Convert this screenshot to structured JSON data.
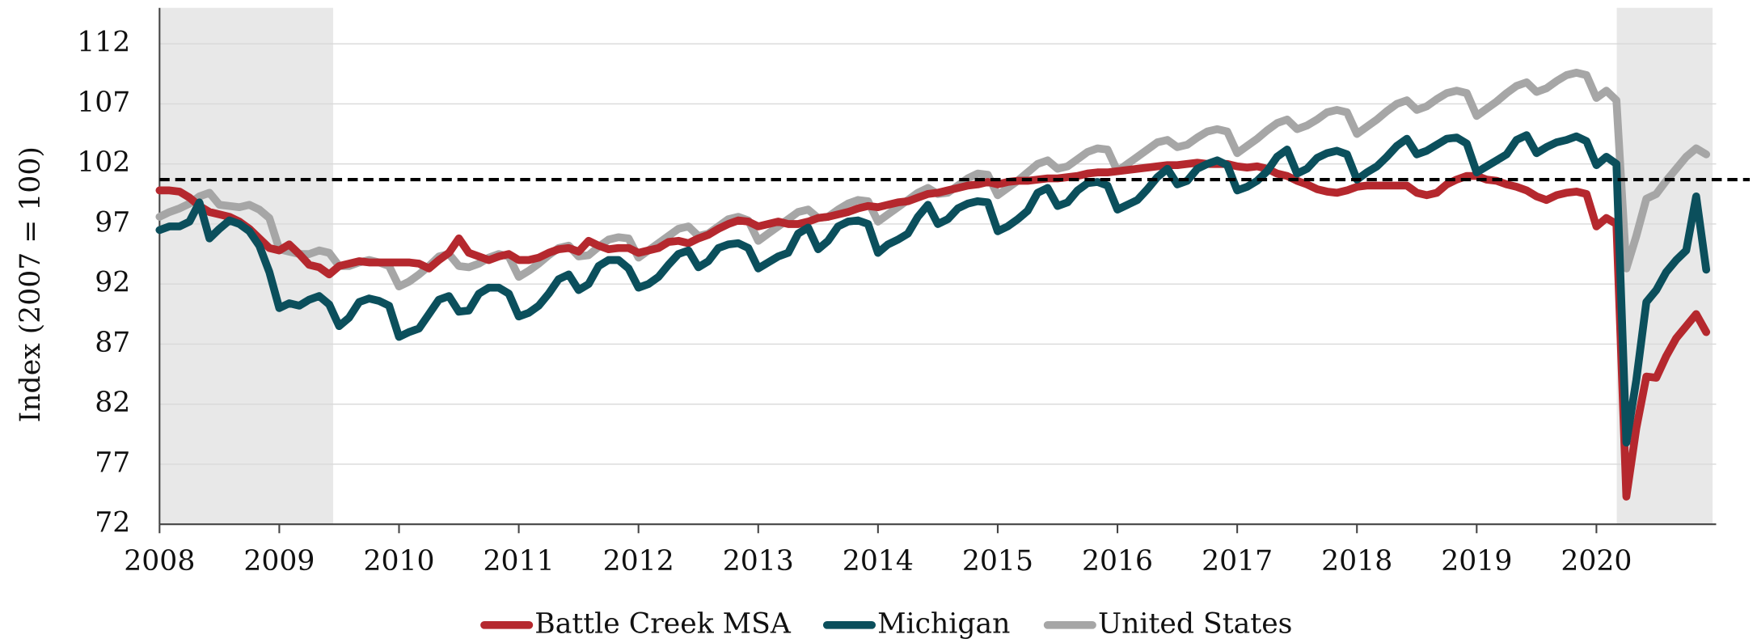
{
  "chart_data": {
    "type": "line",
    "y_label": "Index (2007 = 100)",
    "x": [
      2008.0,
      2008.083,
      2008.167,
      2008.25,
      2008.333,
      2008.417,
      2008.5,
      2008.583,
      2008.667,
      2008.75,
      2008.833,
      2008.917,
      2009.0,
      2009.083,
      2009.167,
      2009.25,
      2009.333,
      2009.417,
      2009.5,
      2009.583,
      2009.667,
      2009.75,
      2009.833,
      2009.917,
      2010.0,
      2010.083,
      2010.167,
      2010.25,
      2010.333,
      2010.417,
      2010.5,
      2010.583,
      2010.667,
      2010.75,
      2010.833,
      2010.917,
      2011.0,
      2011.083,
      2011.167,
      2011.25,
      2011.333,
      2011.417,
      2011.5,
      2011.583,
      2011.667,
      2011.75,
      2011.833,
      2011.917,
      2012.0,
      2012.083,
      2012.167,
      2012.25,
      2012.333,
      2012.417,
      2012.5,
      2012.583,
      2012.667,
      2012.75,
      2012.833,
      2012.917,
      2013.0,
      2013.083,
      2013.167,
      2013.25,
      2013.333,
      2013.417,
      2013.5,
      2013.583,
      2013.667,
      2013.75,
      2013.833,
      2013.917,
      2014.0,
      2014.083,
      2014.167,
      2014.25,
      2014.333,
      2014.417,
      2014.5,
      2014.583,
      2014.667,
      2014.75,
      2014.833,
      2014.917,
      2015.0,
      2015.083,
      2015.167,
      2015.25,
      2015.333,
      2015.417,
      2015.5,
      2015.583,
      2015.667,
      2015.75,
      2015.833,
      2015.917,
      2016.0,
      2016.083,
      2016.167,
      2016.25,
      2016.333,
      2016.417,
      2016.5,
      2016.583,
      2016.667,
      2016.75,
      2016.833,
      2016.917,
      2017.0,
      2017.083,
      2017.167,
      2017.25,
      2017.333,
      2017.417,
      2017.5,
      2017.583,
      2017.667,
      2017.75,
      2017.833,
      2017.917,
      2018.0,
      2018.083,
      2018.167,
      2018.25,
      2018.333,
      2018.417,
      2018.5,
      2018.583,
      2018.667,
      2018.75,
      2018.833,
      2018.917,
      2019.0,
      2019.083,
      2019.167,
      2019.25,
      2019.333,
      2019.417,
      2019.5,
      2019.583,
      2019.667,
      2019.75,
      2019.833,
      2019.917,
      2020.0,
      2020.083,
      2020.167,
      2020.25,
      2020.333,
      2020.417,
      2020.5,
      2020.583,
      2020.667,
      2020.75,
      2020.833,
      2020.917
    ],
    "series": [
      {
        "name": "Battle Creek MSA",
        "color": "#b5282e",
        "values": [
          99.8,
          99.8,
          99.7,
          99.2,
          98.5,
          98.0,
          97.8,
          97.6,
          97.2,
          96.6,
          95.8,
          95.0,
          94.8,
          95.3,
          94.5,
          93.6,
          93.4,
          92.8,
          93.5,
          93.7,
          93.9,
          93.8,
          93.8,
          93.8,
          93.8,
          93.8,
          93.7,
          93.3,
          94.0,
          94.6,
          95.8,
          94.6,
          94.3,
          94.0,
          94.3,
          94.5,
          94.0,
          94.0,
          94.2,
          94.6,
          94.9,
          95.0,
          94.7,
          95.6,
          95.2,
          94.9,
          95.0,
          95.0,
          94.6,
          94.8,
          95.0,
          95.5,
          95.6,
          95.4,
          95.8,
          96.1,
          96.6,
          97.0,
          97.3,
          97.2,
          96.8,
          97.0,
          97.2,
          97.0,
          97.0,
          97.2,
          97.5,
          97.6,
          97.8,
          98.0,
          98.3,
          98.5,
          98.4,
          98.6,
          98.8,
          98.9,
          99.2,
          99.5,
          99.6,
          99.8,
          100.0,
          100.2,
          100.3,
          100.5,
          100.3,
          100.5,
          100.6,
          100.6,
          100.7,
          100.8,
          100.8,
          100.9,
          101.0,
          101.2,
          101.3,
          101.3,
          101.4,
          101.5,
          101.6,
          101.7,
          101.8,
          101.9,
          101.9,
          102.0,
          102.1,
          102.0,
          102.0,
          102.0,
          101.8,
          101.7,
          101.8,
          101.6,
          101.2,
          101.0,
          100.6,
          100.3,
          99.9,
          99.7,
          99.6,
          99.8,
          100.1,
          100.2,
          100.2,
          100.2,
          100.2,
          100.2,
          99.6,
          99.4,
          99.6,
          100.3,
          100.7,
          101.0,
          101.0,
          100.7,
          100.6,
          100.3,
          100.1,
          99.8,
          99.3,
          99.0,
          99.4,
          99.6,
          99.7,
          99.5,
          96.8,
          97.5,
          97.0,
          74.3,
          80.0,
          84.3,
          84.2,
          86.0,
          87.5,
          88.5,
          89.5,
          88.0
        ]
      },
      {
        "name": "Michigan",
        "color": "#0b4f5c",
        "values": [
          96.5,
          96.8,
          96.8,
          97.2,
          98.8,
          95.8,
          96.6,
          97.3,
          97.0,
          96.4,
          95.2,
          93.0,
          90.0,
          90.4,
          90.2,
          90.7,
          91.0,
          90.3,
          88.5,
          89.2,
          90.5,
          90.8,
          90.6,
          90.2,
          87.6,
          88.0,
          88.3,
          89.5,
          90.7,
          91.0,
          89.7,
          89.8,
          91.2,
          91.7,
          91.7,
          91.2,
          89.3,
          89.6,
          90.2,
          91.2,
          92.4,
          92.8,
          91.5,
          92.0,
          93.5,
          94.0,
          94.0,
          93.3,
          91.7,
          92.0,
          92.6,
          93.6,
          94.5,
          94.8,
          93.4,
          93.9,
          95.0,
          95.3,
          95.4,
          95.0,
          93.3,
          93.8,
          94.3,
          94.6,
          96.2,
          96.7,
          94.9,
          95.6,
          96.8,
          97.2,
          97.3,
          97.0,
          94.6,
          95.3,
          95.7,
          96.2,
          97.6,
          98.6,
          97.0,
          97.4,
          98.3,
          98.7,
          98.9,
          98.8,
          96.4,
          96.8,
          97.4,
          98.1,
          99.6,
          100.0,
          98.5,
          98.8,
          99.8,
          100.4,
          100.5,
          100.2,
          98.2,
          98.6,
          99.0,
          99.9,
          100.9,
          101.6,
          100.3,
          100.6,
          101.6,
          102.0,
          102.3,
          101.9,
          99.8,
          100.1,
          100.6,
          101.4,
          102.6,
          103.2,
          101.2,
          101.6,
          102.5,
          102.9,
          103.1,
          102.8,
          100.7,
          101.3,
          101.8,
          102.6,
          103.5,
          104.1,
          102.8,
          103.1,
          103.6,
          104.1,
          104.2,
          103.7,
          101.3,
          101.8,
          102.3,
          102.8,
          104.0,
          104.4,
          102.9,
          103.4,
          103.8,
          104.0,
          104.3,
          103.9,
          101.9,
          102.6,
          102.0,
          78.8,
          84.0,
          90.5,
          91.5,
          93.0,
          94.0,
          94.8,
          99.3,
          93.2
        ]
      },
      {
        "name": "United States",
        "color": "#a6a6a6",
        "values": [
          97.6,
          98.0,
          98.3,
          98.7,
          99.3,
          99.6,
          98.6,
          98.5,
          98.4,
          98.6,
          98.2,
          97.5,
          94.9,
          94.7,
          94.5,
          94.5,
          94.8,
          94.6,
          93.5,
          93.5,
          93.8,
          94.0,
          93.8,
          93.5,
          91.8,
          92.2,
          92.8,
          93.5,
          94.3,
          94.5,
          93.5,
          93.4,
          93.7,
          94.2,
          94.5,
          94.3,
          92.6,
          93.1,
          93.7,
          94.4,
          95.0,
          95.2,
          94.3,
          94.4,
          95.1,
          95.7,
          95.9,
          95.8,
          94.2,
          94.8,
          95.4,
          96.0,
          96.6,
          96.8,
          96.0,
          96.2,
          96.8,
          97.4,
          97.6,
          97.3,
          95.6,
          96.2,
          96.8,
          97.4,
          98.0,
          98.2,
          97.5,
          97.6,
          98.2,
          98.7,
          99.0,
          98.9,
          97.2,
          97.8,
          98.4,
          99.0,
          99.6,
          100.0,
          99.5,
          99.6,
          100.2,
          100.8,
          101.2,
          101.1,
          99.4,
          100.0,
          100.6,
          101.3,
          102.0,
          102.3,
          101.6,
          101.8,
          102.4,
          103.0,
          103.3,
          103.2,
          101.4,
          102.0,
          102.6,
          103.2,
          103.8,
          104.0,
          103.4,
          103.6,
          104.2,
          104.7,
          104.9,
          104.7,
          102.9,
          103.5,
          104.1,
          104.8,
          105.4,
          105.7,
          104.9,
          105.2,
          105.7,
          106.3,
          106.5,
          106.3,
          104.5,
          105.1,
          105.7,
          106.4,
          107.0,
          107.3,
          106.5,
          106.8,
          107.4,
          107.9,
          108.1,
          107.9,
          106.0,
          106.6,
          107.2,
          107.9,
          108.5,
          108.8,
          108.0,
          108.3,
          108.9,
          109.4,
          109.6,
          109.4,
          107.5,
          108.1,
          107.3,
          93.3,
          96.0,
          99.1,
          99.5,
          100.6,
          101.6,
          102.6,
          103.3,
          102.8
        ]
      }
    ],
    "shaded_periods": [
      [
        2008.0,
        2009.45
      ],
      [
        2020.17,
        2020.97
      ]
    ],
    "reference_line": 100.7,
    "xlim": [
      2008,
      2021
    ],
    "xticks": [
      2008,
      2009,
      2010,
      2011,
      2012,
      2013,
      2014,
      2015,
      2016,
      2017,
      2018,
      2019,
      2020
    ],
    "ylim": [
      72,
      115
    ],
    "yticks": [
      72,
      77,
      82,
      87,
      92,
      97,
      102,
      107,
      112
    ],
    "grid": true,
    "legend": "bottom"
  }
}
